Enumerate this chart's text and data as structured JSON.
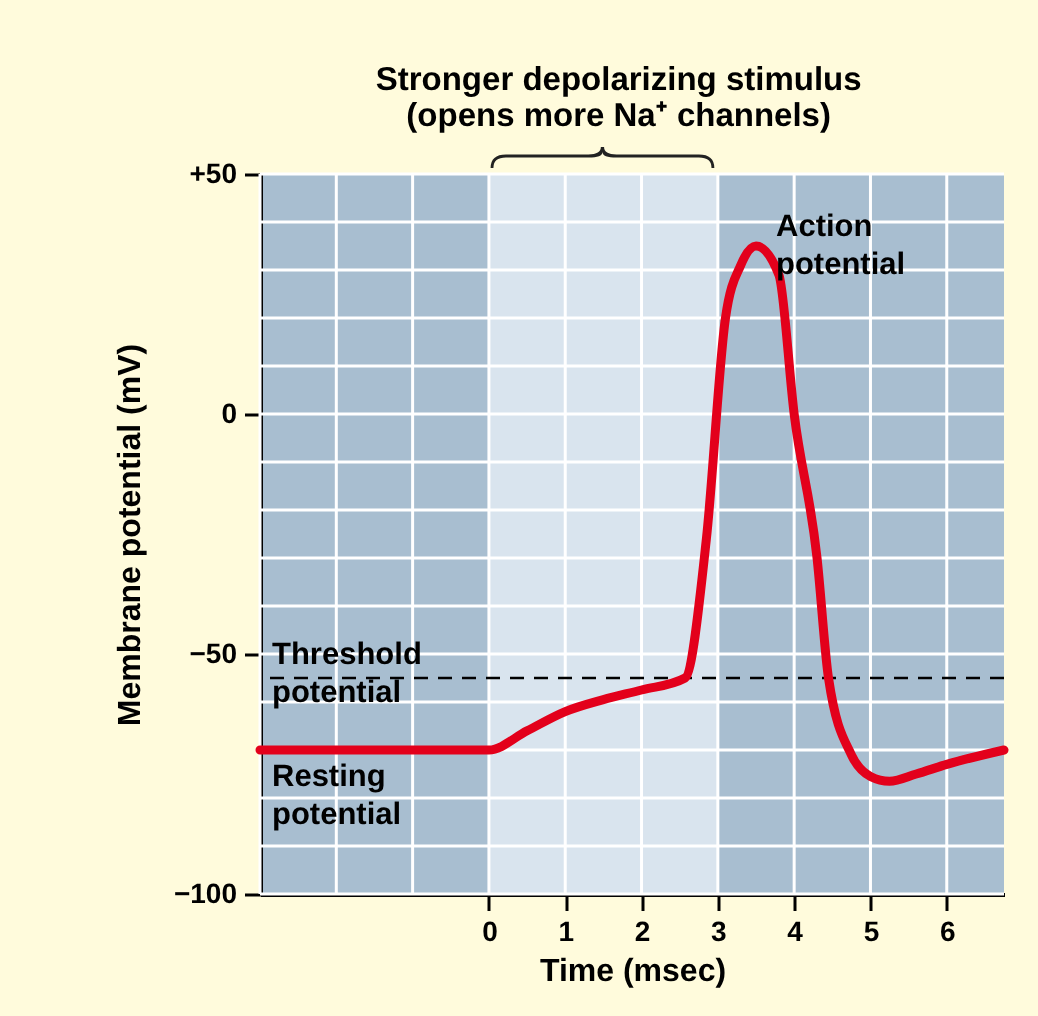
{
  "chart_data": {
    "type": "line",
    "xlabel": "Time (msec)",
    "ylabel": "Membrane potential (mV)",
    "x": [
      -3,
      0,
      0.5,
      1,
      1.5,
      2,
      2.57,
      2.85,
      3.1,
      3.3,
      3.5,
      3.8,
      4.0,
      4.3,
      4.45,
      4.75,
      5.0,
      5.25,
      5.6,
      6,
      6.75
    ],
    "series": [
      {
        "color": "#e3001b",
        "values": [
          -70,
          -70,
          -66,
          -62,
          -59.5,
          -57.5,
          -55,
          -26,
          20,
          31,
          35,
          29,
          0,
          -30,
          -55,
          -71,
          -75.5,
          -76.5,
          -75,
          -73,
          -70
        ]
      }
    ],
    "xlim": [
      -3,
      6.75
    ],
    "xticks": [
      {
        "value": -3,
        "label": null
      },
      {
        "value": -2,
        "label": null
      },
      {
        "value": -1,
        "label": null
      },
      0,
      1,
      2,
      3,
      4,
      5,
      6
    ],
    "ylim": [
      -100,
      50
    ],
    "yticks": [
      {
        "value": -100,
        "label": "−100"
      },
      {
        "value": -90,
        "label": null
      },
      {
        "value": -80,
        "label": null
      },
      {
        "value": -70,
        "label": null
      },
      {
        "value": -60,
        "label": null
      },
      {
        "value": -50,
        "label": "−50"
      },
      {
        "value": -40,
        "label": null
      },
      {
        "value": -30,
        "label": null
      },
      {
        "value": -20,
        "label": null
      },
      {
        "value": -10,
        "label": null
      },
      0,
      {
        "value": 10,
        "label": null
      },
      {
        "value": 20,
        "label": null
      },
      {
        "value": 30,
        "label": null
      },
      {
        "value": 40,
        "label": null
      },
      {
        "value": 50,
        "label": "+50"
      }
    ],
    "grid": true,
    "ref_lines": [
      {
        "axis": "y",
        "value": -55,
        "label": "Threshold\npotential",
        "color": "#000000",
        "line_style": "dashed"
      }
    ],
    "bands": [
      {
        "axis": "x",
        "from": 0,
        "to": 3,
        "label": "Stronger depolarizing stimulus\n(opens more Na⁺ channels)",
        "color": "#d9e4ee"
      }
    ],
    "annotations": [
      {
        "text": "Resting\npotential",
        "x": -3,
        "y": -70
      },
      {
        "text": "Action\npotential",
        "x": 3.5,
        "y": 35
      }
    ]
  }
}
